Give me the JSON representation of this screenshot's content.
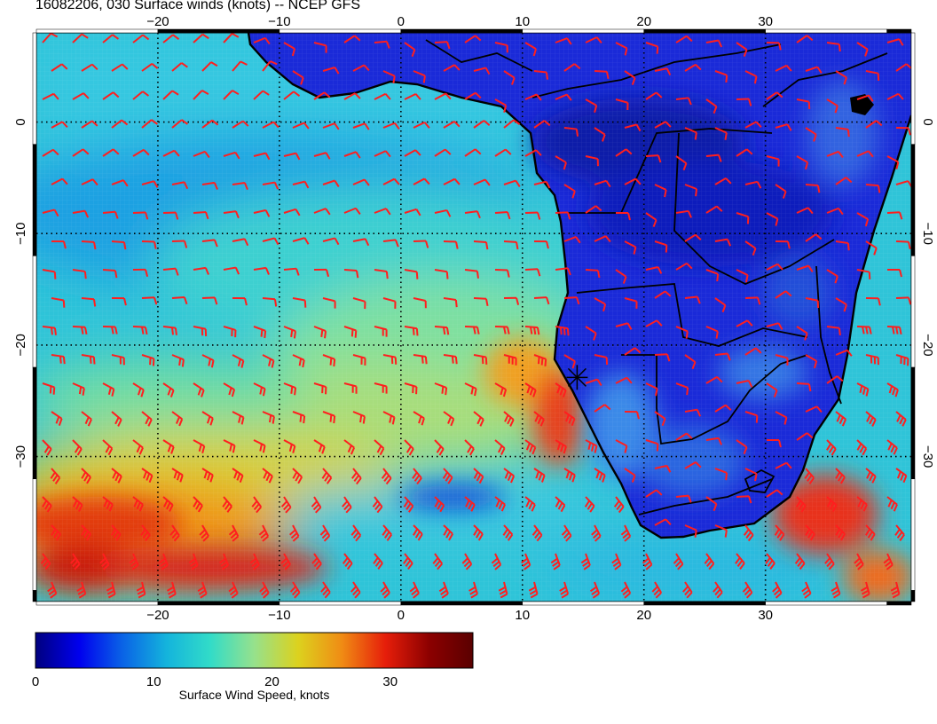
{
  "title": "16082206, 030 Surface winds (knots) -- NCEP GFS",
  "map": {
    "lon_range": [
      -30,
      42
    ],
    "lat_range": [
      -43,
      8
    ],
    "lon_ticks": [
      {
        "value": -20,
        "label": "−20"
      },
      {
        "value": -10,
        "label": "−10"
      },
      {
        "value": 0,
        "label": "0"
      },
      {
        "value": 10,
        "label": "10"
      },
      {
        "value": 20,
        "label": "20"
      },
      {
        "value": 30,
        "label": "30"
      }
    ],
    "lat_ticks": [
      {
        "value": 0,
        "label": "0"
      },
      {
        "value": -10,
        "label": "−10"
      },
      {
        "value": -20,
        "label": "−20"
      },
      {
        "value": -30,
        "label": "−30"
      }
    ],
    "marker": {
      "lon": 14.5,
      "lat": -22.9
    }
  },
  "colorbar": {
    "label": "Surface Wind Speed, knots",
    "range": [
      0,
      37
    ],
    "ticks": [
      {
        "value": 0,
        "label": "0"
      },
      {
        "value": 10,
        "label": "10"
      },
      {
        "value": 20,
        "label": "20"
      },
      {
        "value": 30,
        "label": "30"
      }
    ],
    "colors": [
      "#00007f",
      "#0000ee",
      "#0a64e6",
      "#14b4dc",
      "#32dcc8",
      "#96e18c",
      "#dcd21e",
      "#f08c14",
      "#e61e0a",
      "#8c0000",
      "#5a0000"
    ]
  },
  "colors": {
    "barb": "#ff1e1e",
    "land": "#1a2ad8",
    "coast": "#000000"
  }
}
